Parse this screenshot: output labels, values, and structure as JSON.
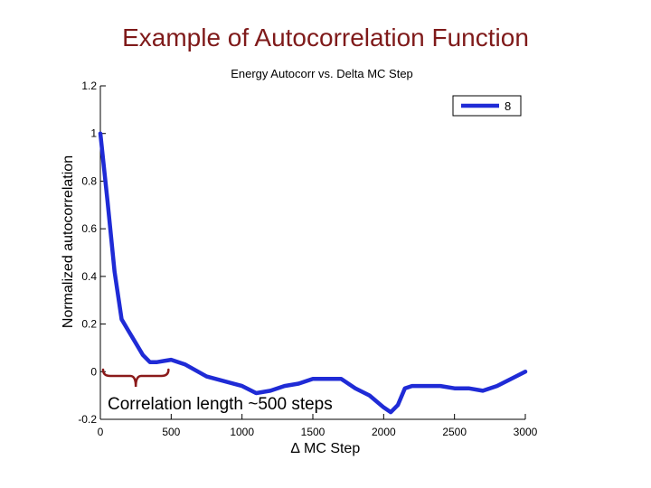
{
  "slide": {
    "title": "Example of Autocorrelation Function"
  },
  "chart_data": {
    "type": "line",
    "title": "Energy Autocorr vs. Delta MC Step",
    "xlabel": "∆ MC Step",
    "ylabel": "Normalized autocorrelation",
    "xlim": [
      0,
      3000
    ],
    "ylim": [
      -0.2,
      1.2
    ],
    "xticks": [
      0,
      500,
      1000,
      1500,
      2000,
      2500,
      3000
    ],
    "xtick_labels": [
      "0",
      "500",
      "1000",
      "1500",
      "2000",
      "2500",
      "3000"
    ],
    "yticks": [
      -0.2,
      0,
      0.2,
      0.4,
      0.6,
      0.8,
      1,
      1.2
    ],
    "ytick_labels": [
      "-0.2",
      "0",
      "0.2",
      "0.4",
      "0.6",
      "0.8",
      "1",
      "1.2"
    ],
    "grid": false,
    "legend_position": "top-right",
    "series": [
      {
        "name": "8",
        "color": "#1f2bd6",
        "x": [
          0,
          50,
          100,
          150,
          200,
          250,
          300,
          350,
          400,
          450,
          500,
          600,
          750,
          1000,
          1100,
          1200,
          1300,
          1400,
          1500,
          1600,
          1700,
          1800,
          1900,
          2000,
          2050,
          2100,
          2150,
          2200,
          2300,
          2400,
          2500,
          2600,
          2700,
          2800,
          2900,
          3000
        ],
        "y": [
          1.0,
          0.72,
          0.42,
          0.22,
          0.17,
          0.12,
          0.07,
          0.04,
          0.04,
          0.045,
          0.05,
          0.03,
          -0.02,
          -0.06,
          -0.09,
          -0.08,
          -0.06,
          -0.05,
          -0.03,
          -0.03,
          -0.03,
          -0.07,
          -0.1,
          -0.15,
          -0.17,
          -0.14,
          -0.07,
          -0.06,
          -0.06,
          -0.06,
          -0.07,
          -0.07,
          -0.08,
          -0.06,
          -0.03,
          0.0
        ]
      }
    ],
    "annotations": [
      {
        "text": "Correlation length ~500 steps",
        "x_range": [
          0,
          500
        ],
        "color": "#8b1a1a"
      }
    ]
  }
}
